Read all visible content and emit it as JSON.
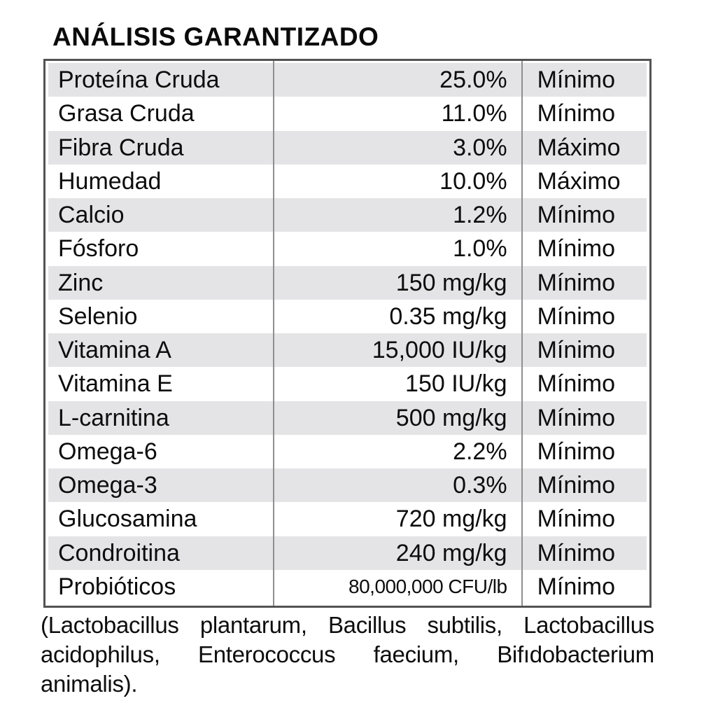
{
  "title": "ANÁLISIS GARANTIZADO",
  "table": {
    "rows": [
      {
        "name": "Proteína Cruda",
        "value": "25.0%",
        "qualifier": "Mínimo"
      },
      {
        "name": "Grasa Cruda",
        "value": "11.0%",
        "qualifier": "Mínimo"
      },
      {
        "name": "Fibra Cruda",
        "value": "3.0%",
        "qualifier": "Máximo"
      },
      {
        "name": "Humedad",
        "value": "10.0%",
        "qualifier": "Máximo"
      },
      {
        "name": "Calcio",
        "value": "1.2%",
        "qualifier": "Mínimo"
      },
      {
        "name": "Fósforo",
        "value": "1.0%",
        "qualifier": "Mínimo"
      },
      {
        "name": "Zinc",
        "value": "150 mg/kg",
        "qualifier": "Mínimo"
      },
      {
        "name": "Selenio",
        "value": "0.35 mg/kg",
        "qualifier": "Mínimo"
      },
      {
        "name": "Vitamina A",
        "value": "15,000 IU/kg",
        "qualifier": "Mínimo"
      },
      {
        "name": "Vitamina E",
        "value": "150 IU/kg",
        "qualifier": "Mínimo"
      },
      {
        "name": "L-carnitina",
        "value": "500 mg/kg",
        "qualifier": "Mínimo"
      },
      {
        "name": "Omega-6",
        "value": "2.2%",
        "qualifier": "Mínimo"
      },
      {
        "name": "Omega-3",
        "value": "0.3%",
        "qualifier": "Mínimo"
      },
      {
        "name": "Glucosamina",
        "value": "720 mg/kg",
        "qualifier": "Mínimo"
      },
      {
        "name": "Condroitina",
        "value": "240 mg/kg",
        "qualifier": "Mínimo"
      },
      {
        "name": "Probióticos",
        "value": "80,000,000 CFU/lb",
        "qualifier": "Mínimo"
      }
    ]
  },
  "footer": {
    "lines": [
      "(Lactobacillus plantarum, Bacillus subtilis, Lactobacillus",
      "acidophilus, Enterococcus faecium, Bifıdobacterium",
      "animalis)."
    ]
  },
  "colors": {
    "row_alt_gray": "#e4e4e6",
    "table_border": "#535353",
    "column_divider": "#8f8f8f",
    "text": "#0d0d0d"
  }
}
